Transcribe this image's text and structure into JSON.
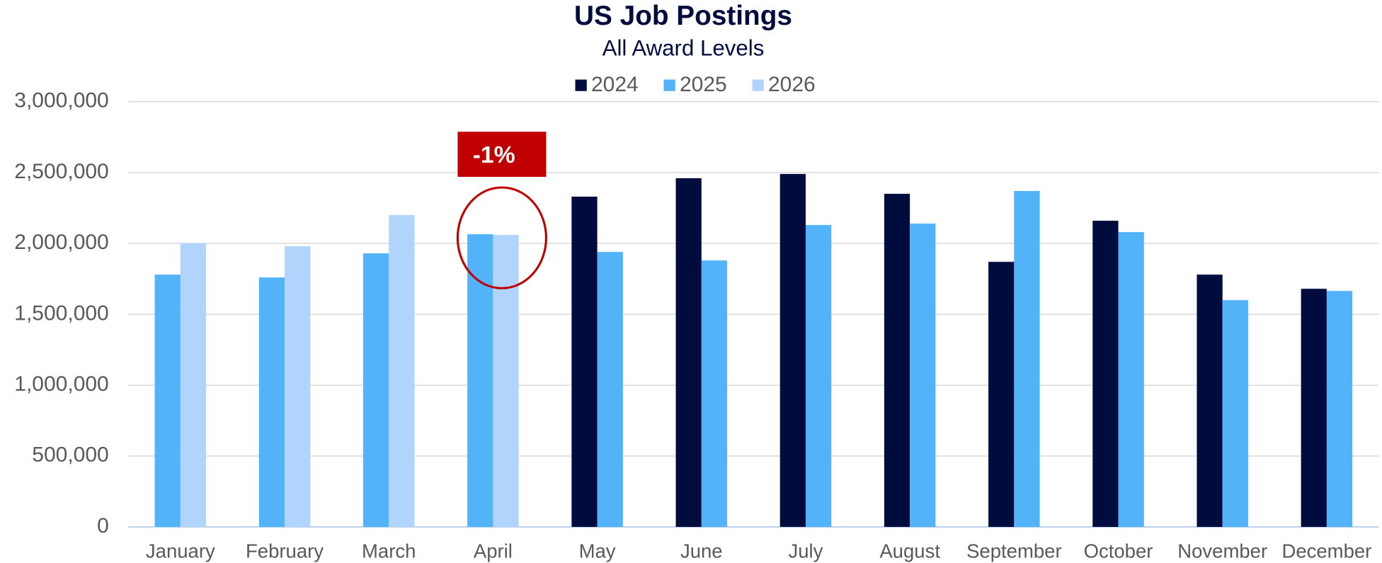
{
  "chart_data": {
    "type": "bar",
    "title": "US Job Postings",
    "subtitle": "All Award Levels",
    "categories": [
      "January",
      "February",
      "March",
      "April",
      "May",
      "June",
      "July",
      "August",
      "September",
      "October",
      "November",
      "December"
    ],
    "series": [
      {
        "name": "2024",
        "color": "#000c3d",
        "values": [
          null,
          null,
          null,
          null,
          2330000,
          2460000,
          2490000,
          2350000,
          1870000,
          2160000,
          1780000,
          1680000
        ]
      },
      {
        "name": "2025",
        "color": "#52b3f9",
        "values": [
          1780000,
          1760000,
          1930000,
          2065000,
          1940000,
          1880000,
          2130000,
          2140000,
          2370000,
          2080000,
          1600000,
          1665000
        ]
      },
      {
        "name": "2026",
        "color": "#b0d4fb",
        "values": [
          2000000,
          1980000,
          2200000,
          2060000,
          null,
          null,
          null,
          null,
          null,
          null,
          null,
          null
        ]
      }
    ],
    "ylim": [
      0,
      3000000
    ],
    "yticks": [
      0,
      {
        "value": 500000,
        "label": "500,000"
      },
      {
        "value": 1000000,
        "label": "1,000,000"
      },
      {
        "value": 1500000,
        "label": "1,500,000"
      },
      {
        "value": 2000000,
        "label": "2,000,000"
      },
      {
        "value": 2500000,
        "label": "2,500,000"
      },
      {
        "value": 3000000,
        "label": "3,000,000"
      }
    ],
    "grid": true,
    "legend": "top",
    "annotations": [
      {
        "text": "-1%",
        "category": "April",
        "color": "#c00000"
      }
    ]
  }
}
